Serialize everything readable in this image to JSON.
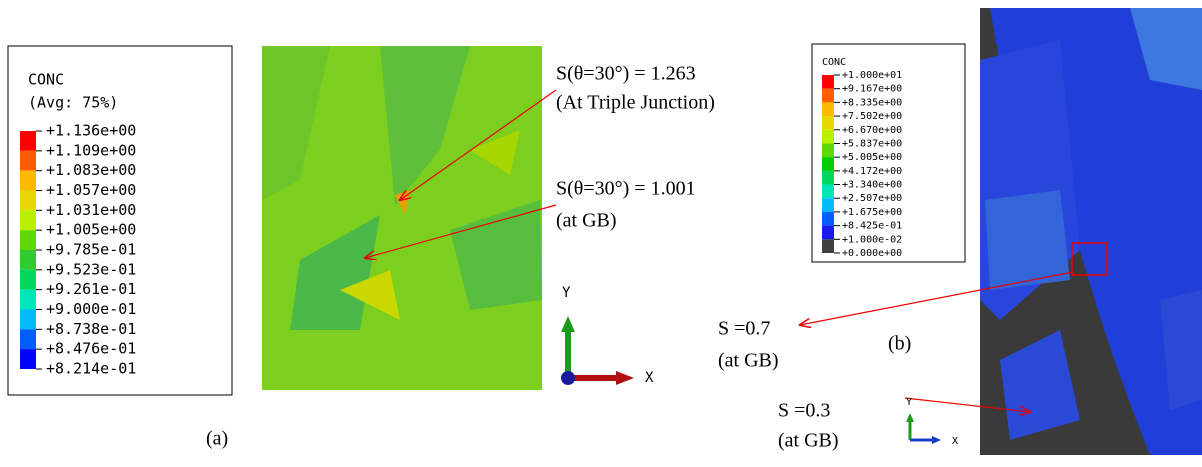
{
  "panels": [
    {
      "legend": {
        "title": "CONC",
        "subtitle": "(Avg: 75%)",
        "labels": [
          "+1.136e+00",
          "+1.109e+00",
          "+1.083e+00",
          "+1.057e+00",
          "+1.031e+00",
          "+1.005e+00",
          "+9.785e-01",
          "+9.523e-01",
          "+9.261e-01",
          "+9.000e-01",
          "+8.738e-01",
          "+8.476e-01",
          "+8.214e-01"
        ],
        "colors": [
          "#ff0000",
          "#ff5d00",
          "#ffb900",
          "#e6d800",
          "#b9f000",
          "#5dd800",
          "#2ecc2e",
          "#00d85d",
          "#00e6b9",
          "#00b9ff",
          "#005dff",
          "#0000ff"
        ]
      },
      "annotations": [
        "S(θ=30°) = 1.263",
        "(At Triple Junction)",
        "S(θ=30°) = 1.001",
        "(at GB)"
      ],
      "axis_labels": [
        "Y",
        "X"
      ],
      "caption": "(a)"
    },
    {
      "legend": {
        "title": "CONC",
        "labels": [
          "+1.000e+01",
          "+9.167e+00",
          "+8.335e+00",
          "+7.502e+00",
          "+6.670e+00",
          "+5.837e+00",
          "+5.005e+00",
          "+4.172e+00",
          "+3.340e+00",
          "+2.507e+00",
          "+1.675e+00",
          "+8.425e-01",
          "+1.000e-02",
          "+0.000e+00"
        ],
        "colors": [
          "#ff0000",
          "#ff5d00",
          "#ffb900",
          "#e6d800",
          "#b9f000",
          "#5dd800",
          "#00cc00",
          "#00d85d",
          "#00e6b9",
          "#00b9ff",
          "#005dff",
          "#1a1aee",
          "#404040"
        ]
      },
      "annotations": [
        "S =0.7",
        "(at GB)",
        "S =0.3",
        "(at GB)"
      ],
      "axis_labels": [
        "Y",
        "X"
      ],
      "caption": "(b)"
    }
  ]
}
